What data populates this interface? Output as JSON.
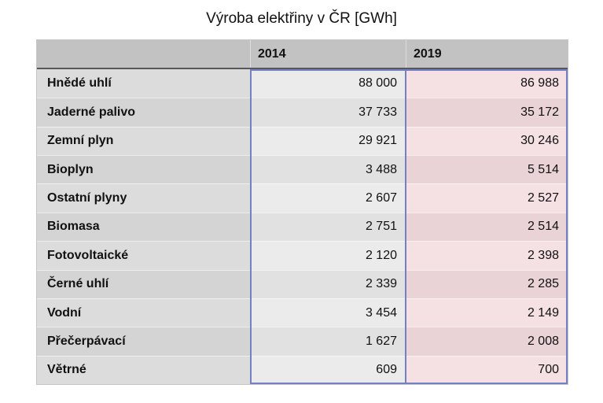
{
  "page": {
    "title": "Výroba elektřiny v ČR [GWh]"
  },
  "table": {
    "columns": [
      "2014",
      "2019"
    ],
    "rows": [
      {
        "label": "Hnědé uhlí",
        "y2014": "88 000",
        "y2019": "86 988"
      },
      {
        "label": "Jaderné palivo",
        "y2014": "37 733",
        "y2019": "35 172"
      },
      {
        "label": "Zemní plyn",
        "y2014": "29 921",
        "y2019": "30 246"
      },
      {
        "label": "Bioplyn",
        "y2014": "3 488",
        "y2019": "5 514"
      },
      {
        "label": "Ostatní plyny",
        "y2014": "2 607",
        "y2019": "2 527"
      },
      {
        "label": "Biomasa",
        "y2014": "2 751",
        "y2019": "2 514"
      },
      {
        "label": "Fotovoltaické",
        "y2014": "2 120",
        "y2019": "2 398"
      },
      {
        "label": "Černé uhlí",
        "y2014": "2 339",
        "y2019": "2 285"
      },
      {
        "label": "Vodní",
        "y2014": "3 454",
        "y2019": "2 149"
      },
      {
        "label": "Přečerpávací",
        "y2014": "1 627",
        "y2019": "2 008"
      },
      {
        "label": "Větrné",
        "y2014": "609",
        "y2019": "700"
      }
    ]
  },
  "colors": {
    "text": "#111111",
    "header_bg": "#c2c2c2",
    "header_underline": "#57575a",
    "label_row_light": "#dcdcdc",
    "label_row_dark": "#d4d4d4",
    "col2014_light": "#ebebeb",
    "col2014_dark": "#e1e1e1",
    "col2019_light": "#f5e0e3",
    "col2019_dark": "#e9d3d7",
    "selection_border": "#7381c3",
    "table_border": "#c6c6c6"
  },
  "chart_data": {
    "type": "table",
    "title": "Výroba elektřiny v ČR [GWh]",
    "unit": "GWh",
    "categories": [
      "Hnědé uhlí",
      "Jaderné palivo",
      "Zemní plyn",
      "Bioplyn",
      "Ostatní plyny",
      "Biomasa",
      "Fotovoltaické",
      "Černé uhlí",
      "Vodní",
      "Přečerpávací",
      "Větrné"
    ],
    "series": [
      {
        "name": "2014",
        "values": [
          88000,
          37733,
          29921,
          3488,
          2607,
          2751,
          2120,
          2339,
          3454,
          1627,
          609
        ]
      },
      {
        "name": "2019",
        "values": [
          86988,
          35172,
          30246,
          5514,
          2527,
          2514,
          2398,
          2285,
          2149,
          2008,
          700
        ]
      }
    ]
  }
}
